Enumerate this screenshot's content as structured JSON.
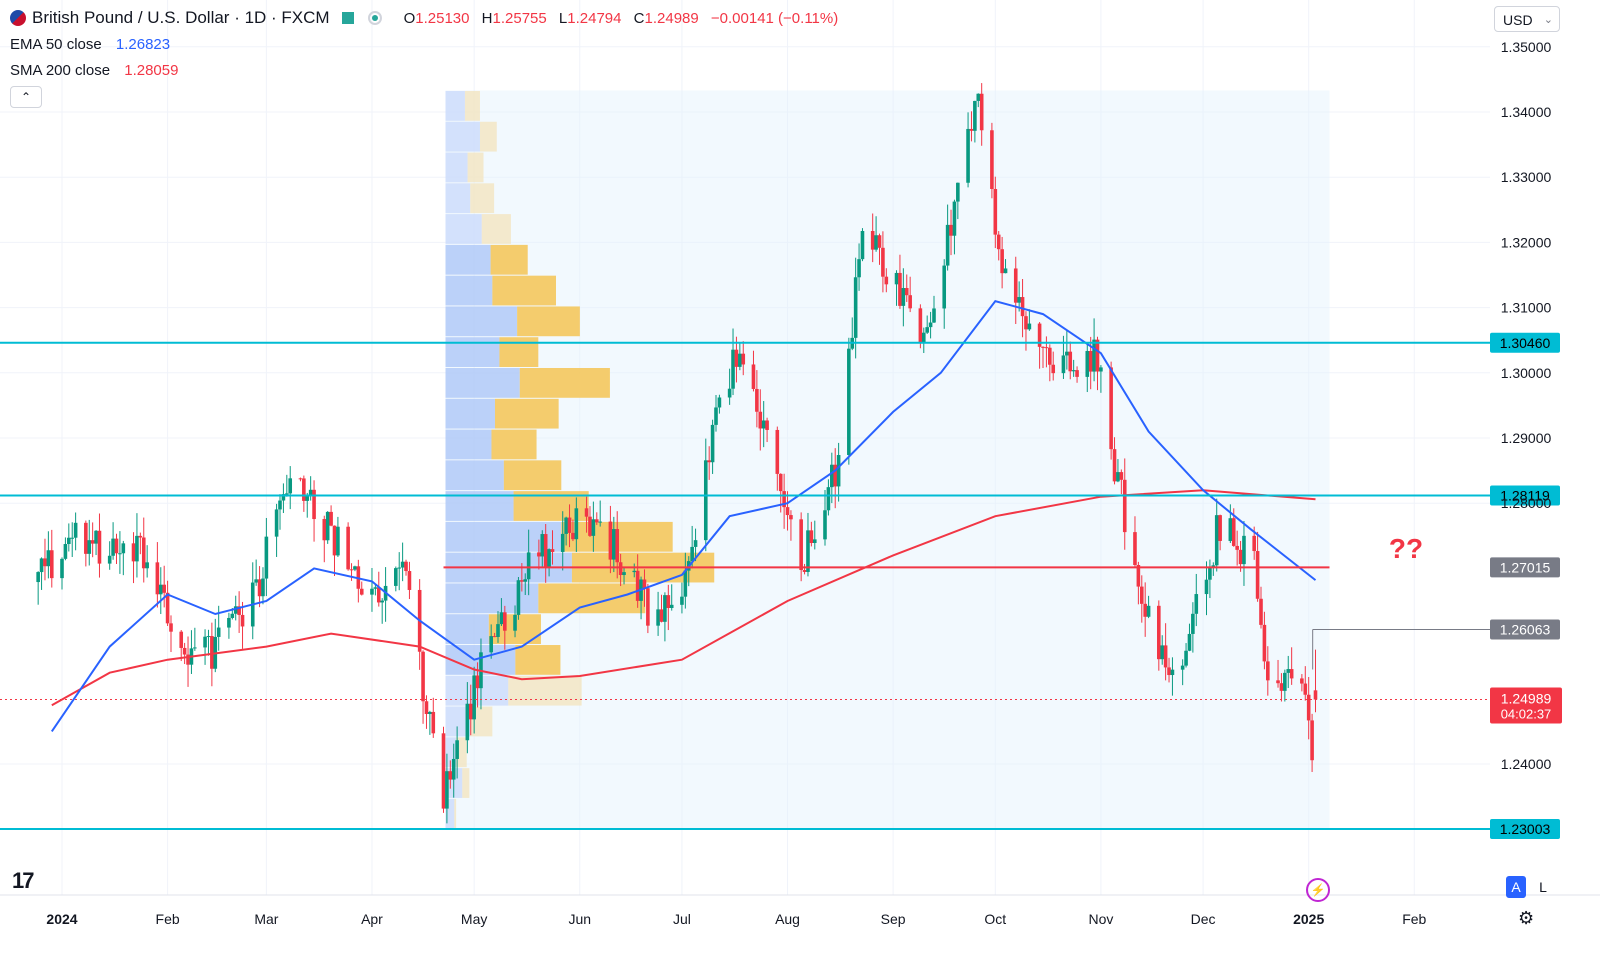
{
  "header": {
    "symbol_title": "British Pound / U.S. Dollar · 1D · FXCM",
    "ohlc": {
      "o_label": "O",
      "o": "1.25130",
      "h_label": "H",
      "h": "1.25755",
      "l_label": "L",
      "l": "1.24794",
      "c_label": "C",
      "c": "1.24989",
      "change": "−0.00141 (−0.11%)"
    },
    "currency": "USD"
  },
  "indicators": {
    "ema": {
      "label": "EMA 50 close",
      "value": "1.26823",
      "color": "#2962ff"
    },
    "sma": {
      "label": "SMA 200 close",
      "value": "1.28059",
      "color": "#f23645"
    }
  },
  "annotation": "??",
  "icons": {
    "logo": "tradingview-logo-icon",
    "collapse": "chevron-up-icon",
    "currency_menu": "chevron-down-icon",
    "settings": "gear-icon",
    "lightning": "lightning-icon"
  },
  "buttons": {
    "auto": "A",
    "log": "L"
  },
  "chart_data": {
    "type": "candlestick",
    "y_axis": {
      "range": [
        1.22,
        1.355
      ],
      "ticks": [
        "1.35000",
        "1.34000",
        "1.33000",
        "1.32000",
        "1.31000",
        "1.30000",
        "1.29000",
        "1.28000",
        "1.24000"
      ]
    },
    "x_axis": {
      "ticks": [
        {
          "label": "2024",
          "date": "2024-01-01",
          "bold": true
        },
        {
          "label": "Feb",
          "date": "2024-02-01"
        },
        {
          "label": "Mar",
          "date": "2024-03-01"
        },
        {
          "label": "Apr",
          "date": "2024-04-01"
        },
        {
          "label": "May",
          "date": "2024-05-01"
        },
        {
          "label": "Jun",
          "date": "2024-06-01"
        },
        {
          "label": "Jul",
          "date": "2024-07-01"
        },
        {
          "label": "Aug",
          "date": "2024-08-01"
        },
        {
          "label": "Sep",
          "date": "2024-09-01"
        },
        {
          "label": "Oct",
          "date": "2024-10-01"
        },
        {
          "label": "Nov",
          "date": "2024-11-01"
        },
        {
          "label": "Dec",
          "date": "2024-12-01"
        },
        {
          "label": "2025",
          "date": "2025-01-01",
          "bold": true
        },
        {
          "label": "Feb",
          "date": "2025-02-01"
        }
      ]
    },
    "price_path": [
      [
        "2023-12-25",
        1.27
      ],
      [
        "2024-01-05",
        1.274
      ],
      [
        "2024-01-15",
        1.272
      ],
      [
        "2024-01-26",
        1.272
      ],
      [
        "2024-02-05",
        1.256
      ],
      [
        "2024-02-14",
        1.257
      ],
      [
        "2024-02-26",
        1.265
      ],
      [
        "2024-03-08",
        1.285
      ],
      [
        "2024-03-20",
        1.275
      ],
      [
        "2024-04-02",
        1.265
      ],
      [
        "2024-04-10",
        1.27
      ],
      [
        "2024-04-22",
        1.235
      ],
      [
        "2024-05-03",
        1.255
      ],
      [
        "2024-05-15",
        1.268
      ],
      [
        "2024-05-27",
        1.277
      ],
      [
        "2024-06-07",
        1.277
      ],
      [
        "2024-06-21",
        1.264
      ],
      [
        "2024-07-01",
        1.266
      ],
      [
        "2024-07-12",
        1.297
      ],
      [
        "2024-07-17",
        1.302
      ],
      [
        "2024-07-31",
        1.282
      ],
      [
        "2024-08-05",
        1.27
      ],
      [
        "2024-08-15",
        1.285
      ],
      [
        "2024-08-23",
        1.322
      ],
      [
        "2024-09-03",
        1.313
      ],
      [
        "2024-09-11",
        1.305
      ],
      [
        "2024-09-20",
        1.328
      ],
      [
        "2024-09-26",
        1.342
      ],
      [
        "2024-10-02",
        1.318
      ],
      [
        "2024-10-08",
        1.309
      ],
      [
        "2024-10-21",
        1.3
      ],
      [
        "2024-10-31",
        1.303
      ],
      [
        "2024-11-06",
        1.283
      ],
      [
        "2024-11-15",
        1.263
      ],
      [
        "2024-11-22",
        1.252
      ],
      [
        "2024-12-06",
        1.277
      ],
      [
        "2024-12-16",
        1.27
      ],
      [
        "2024-12-20",
        1.253
      ],
      [
        "2024-12-30",
        1.255
      ],
      [
        "2025-01-02",
        1.24
      ],
      [
        "2025-01-03",
        1.25
      ]
    ],
    "last_candle": {
      "date": "2025-01-03",
      "open": 1.2513,
      "high": 1.25755,
      "low": 1.24794,
      "close": 1.24989
    },
    "ema50": [
      [
        "2023-12-29",
        1.245
      ],
      [
        "2024-01-15",
        1.258
      ],
      [
        "2024-02-01",
        1.266
      ],
      [
        "2024-02-15",
        1.263
      ],
      [
        "2024-03-01",
        1.265
      ],
      [
        "2024-03-15",
        1.27
      ],
      [
        "2024-04-01",
        1.268
      ],
      [
        "2024-04-15",
        1.262
      ],
      [
        "2024-05-01",
        1.256
      ],
      [
        "2024-05-15",
        1.258
      ],
      [
        "2024-06-01",
        1.264
      ],
      [
        "2024-06-15",
        1.266
      ],
      [
        "2024-07-01",
        1.269
      ],
      [
        "2024-07-15",
        1.278
      ],
      [
        "2024-08-01",
        1.28
      ],
      [
        "2024-08-15",
        1.285
      ],
      [
        "2024-09-01",
        1.294
      ],
      [
        "2024-09-15",
        1.3
      ],
      [
        "2024-10-01",
        1.311
      ],
      [
        "2024-10-15",
        1.309
      ],
      [
        "2024-11-01",
        1.303
      ],
      [
        "2024-11-15",
        1.291
      ],
      [
        "2024-12-01",
        1.282
      ],
      [
        "2024-12-15",
        1.276
      ],
      [
        "2025-01-03",
        1.2682
      ]
    ],
    "sma200": [
      [
        "2023-12-29",
        1.249
      ],
      [
        "2024-01-15",
        1.254
      ],
      [
        "2024-02-01",
        1.256
      ],
      [
        "2024-03-01",
        1.258
      ],
      [
        "2024-03-20",
        1.26
      ],
      [
        "2024-04-15",
        1.258
      ],
      [
        "2024-05-01",
        1.2545
      ],
      [
        "2024-05-15",
        1.253
      ],
      [
        "2024-06-01",
        1.2535
      ],
      [
        "2024-07-01",
        1.256
      ],
      [
        "2024-08-01",
        1.265
      ],
      [
        "2024-09-01",
        1.272
      ],
      [
        "2024-10-01",
        1.278
      ],
      [
        "2024-11-01",
        1.281
      ],
      [
        "2024-12-01",
        1.282
      ],
      [
        "2025-01-03",
        1.2806
      ]
    ],
    "horizontal_levels": [
      {
        "value": 1.3046,
        "label": "1.30460",
        "style": "cyan"
      },
      {
        "value": 1.28119,
        "label": "1.28119",
        "style": "cyan"
      },
      {
        "value": 1.27015,
        "label": "1.27015",
        "style": "red"
      },
      {
        "value": 1.26063,
        "label": "1.26063",
        "style": "gray"
      },
      {
        "value": 1.23003,
        "label": "1.23003",
        "style": "cyan"
      }
    ],
    "current_price": {
      "value": 1.24989,
      "label": "1.24989",
      "countdown": "04:02:37"
    },
    "volume_profile": {
      "range_start": "2024-04-22",
      "range_end": "2025-01-03",
      "price_top": 1.3433,
      "price_bottom": 1.23,
      "rows": [
        {
          "up": 0.022,
          "down": 0.017
        },
        {
          "up": 0.039,
          "down": 0.019
        },
        {
          "up": 0.025,
          "down": 0.018
        },
        {
          "up": 0.028,
          "down": 0.027
        },
        {
          "up": 0.041,
          "down": 0.033
        },
        {
          "up": 0.051,
          "down": 0.042
        },
        {
          "up": 0.053,
          "down": 0.072
        },
        {
          "up": 0.081,
          "down": 0.071
        },
        {
          "up": 0.061,
          "down": 0.044
        },
        {
          "up": 0.084,
          "down": 0.102
        },
        {
          "up": 0.056,
          "down": 0.072
        },
        {
          "up": 0.052,
          "down": 0.051
        },
        {
          "up": 0.066,
          "down": 0.065
        },
        {
          "up": 0.077,
          "down": 0.085
        },
        {
          "up": 0.131,
          "down": 0.126
        },
        {
          "up": 0.143,
          "down": 0.161
        },
        {
          "up": 0.105,
          "down": 0.121
        },
        {
          "up": 0.049,
          "down": 0.059
        },
        {
          "up": 0.079,
          "down": 0.051
        },
        {
          "up": 0.071,
          "down": 0.083
        },
        {
          "up": 0.028,
          "down": 0.025
        },
        {
          "up": 0.012,
          "down": 0.012
        },
        {
          "up": 0.019,
          "down": 0.008
        },
        {
          "up": 0.01,
          "down": 0.002
        }
      ]
    }
  }
}
